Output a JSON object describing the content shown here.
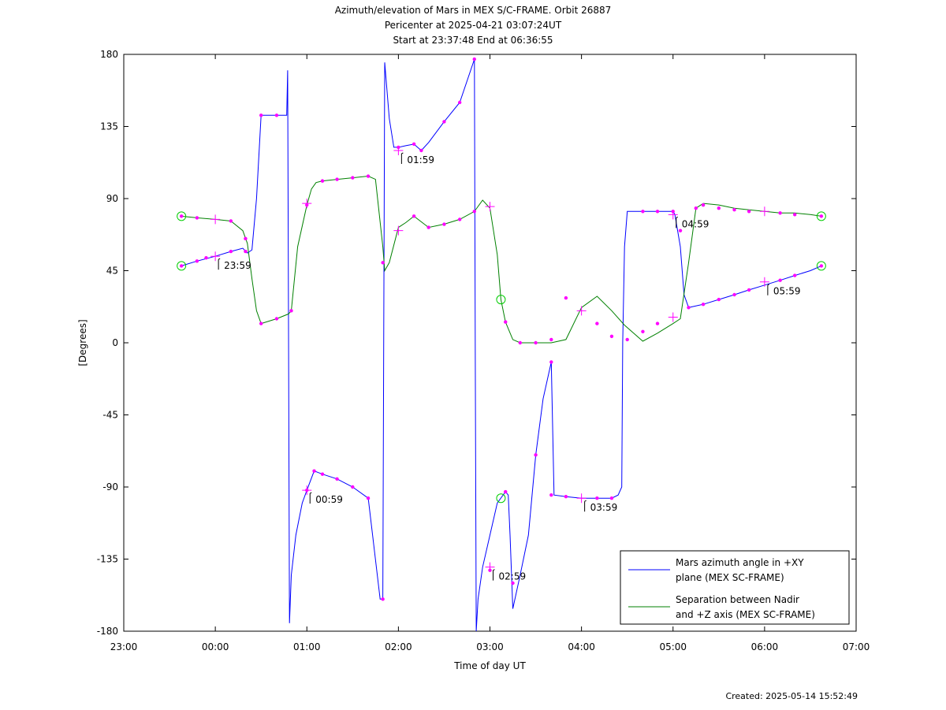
{
  "chart_data": {
    "type": "line",
    "title": [
      "Azimuth/elevation of Mars in MEX S/C-FRAME.  Orbit 26887",
      "Pericenter at 2025-04-21 03:07:24UT",
      "Start at 23:37:48 End at 06:36:55"
    ],
    "xlabel": "Time of day UT",
    "ylabel": "[Degrees]",
    "xlim_hours": [
      23,
      31
    ],
    "ylim": [
      -180,
      180
    ],
    "xticks": [
      {
        "v": 23,
        "label": "23:00"
      },
      {
        "v": 24,
        "label": "00:00"
      },
      {
        "v": 25,
        "label": "01:00"
      },
      {
        "v": 26,
        "label": "02:00"
      },
      {
        "v": 27,
        "label": "03:00"
      },
      {
        "v": 28,
        "label": "04:00"
      },
      {
        "v": 29,
        "label": "05:00"
      },
      {
        "v": 30,
        "label": "06:00"
      },
      {
        "v": 31,
        "label": "07:00"
      }
    ],
    "yticks": [
      -180,
      -135,
      -90,
      -45,
      0,
      45,
      90,
      135,
      180
    ],
    "grid": false,
    "legend_position": "bottom-right",
    "colors": {
      "azimuth": "#0000ff",
      "separation": "#008000",
      "marker": "#ff00ff",
      "endpoint": "#00cc00"
    },
    "series": [
      {
        "name": "Mars azimuth angle in +XY plane (MEX SC-FRAME)",
        "legend_lines": [
          "Mars azimuth angle in +XY",
          "plane (MEX SC-FRAME)"
        ],
        "color": "#0000ff",
        "x": [
          23.63,
          23.8,
          24.0,
          24.17,
          24.3,
          24.35,
          24.4,
          24.45,
          24.5,
          24.78,
          24.79,
          24.8,
          24.81,
          24.83,
          24.88,
          24.95,
          25.0,
          25.08,
          25.17,
          25.33,
          25.5,
          25.67,
          25.8,
          25.83,
          25.84,
          25.85,
          25.9,
          25.95,
          26.0,
          26.08,
          26.17,
          26.25,
          26.33,
          26.5,
          26.67,
          26.83,
          26.84,
          26.85,
          26.87,
          26.92,
          27.0,
          27.08,
          27.17,
          27.2,
          27.22,
          27.25,
          27.33,
          27.42,
          27.5,
          27.58,
          27.67,
          27.7,
          27.83,
          28.0,
          28.17,
          28.33,
          28.4,
          28.44,
          28.45,
          28.47,
          28.5,
          28.67,
          28.83,
          29.0,
          29.02,
          29.08,
          29.12,
          29.17,
          29.33,
          29.5,
          29.67,
          29.83,
          30.0,
          30.17,
          30.33,
          30.5,
          30.62
        ],
        "y": [
          48,
          51,
          54,
          57,
          59,
          56,
          58,
          90,
          142,
          142,
          170,
          8,
          -175,
          -145,
          -120,
          -100,
          -92,
          -80,
          -82,
          -85,
          -90,
          -97,
          -160,
          -160,
          10,
          175,
          140,
          122,
          122,
          123,
          124,
          120,
          125,
          138,
          150,
          177,
          -10,
          -180,
          -160,
          -140,
          -120,
          -100,
          -93,
          -95,
          -120,
          -166,
          -145,
          -120,
          -70,
          -35,
          -12,
          -95,
          -96,
          -97,
          -97,
          -97,
          -95,
          -90,
          0,
          60,
          82,
          82,
          82,
          82,
          80,
          60,
          30,
          22,
          24,
          27,
          30,
          33,
          36,
          39,
          42,
          45,
          48
        ]
      },
      {
        "name": "Separation between Nadir and +Z axis (MEX SC-FRAME)",
        "legend_lines": [
          "Separation between Nadir",
          "and +Z axis (MEX SC-FRAME)"
        ],
        "color": "#008000",
        "x": [
          23.63,
          23.8,
          24.0,
          24.17,
          24.3,
          24.35,
          24.4,
          24.45,
          24.5,
          24.67,
          24.8,
          24.83,
          24.9,
          25.0,
          25.05,
          25.1,
          25.17,
          25.33,
          25.5,
          25.67,
          25.75,
          25.83,
          25.85,
          25.9,
          26.0,
          26.08,
          26.17,
          26.33,
          26.5,
          26.67,
          26.83,
          26.92,
          27.0,
          27.08,
          27.12,
          27.17,
          27.25,
          27.33,
          27.5,
          27.67,
          27.83,
          28.0,
          28.17,
          28.33,
          28.47,
          28.67,
          28.83,
          29.0,
          29.08,
          29.17,
          29.25,
          29.33,
          29.5,
          29.67,
          29.83,
          30.0,
          30.17,
          30.33,
          30.5,
          30.62
        ],
        "y": [
          79,
          78,
          77,
          76,
          70,
          62,
          40,
          20,
          12,
          15,
          18,
          20,
          60,
          86,
          96,
          100,
          101,
          102,
          103,
          104,
          102,
          60,
          45,
          50,
          72,
          75,
          79,
          72,
          74,
          77,
          82,
          89,
          84,
          55,
          27,
          13,
          2,
          0,
          0,
          0,
          2,
          22,
          29,
          20,
          11,
          1,
          6,
          12,
          15,
          50,
          84,
          87,
          86,
          84,
          83,
          82,
          81,
          81,
          80,
          79
        ]
      }
    ],
    "magenta_markers": {
      "azimuth": [
        [
          23.63,
          48
        ],
        [
          23.8,
          51
        ],
        [
          23.9,
          53
        ],
        [
          24.17,
          57
        ],
        [
          24.33,
          57
        ],
        [
          24.5,
          142
        ],
        [
          24.67,
          142
        ],
        [
          25.0,
          -92
        ],
        [
          25.08,
          -80
        ],
        [
          25.17,
          -82
        ],
        [
          25.33,
          -85
        ],
        [
          25.5,
          -90
        ],
        [
          25.67,
          -97
        ],
        [
          25.83,
          -160
        ],
        [
          26.0,
          122
        ],
        [
          26.17,
          124
        ],
        [
          26.25,
          120
        ],
        [
          26.5,
          138
        ],
        [
          26.67,
          150
        ],
        [
          26.83,
          177
        ],
        [
          27.0,
          -142
        ],
        [
          27.17,
          -93
        ],
        [
          27.25,
          -150
        ],
        [
          27.5,
          -70
        ],
        [
          27.67,
          -12
        ],
        [
          27.67,
          -95
        ],
        [
          27.83,
          -96
        ],
        [
          28.17,
          -97
        ],
        [
          28.33,
          -97
        ],
        [
          28.67,
          82
        ],
        [
          28.83,
          82
        ],
        [
          29.0,
          82
        ],
        [
          29.17,
          22
        ],
        [
          29.33,
          24
        ],
        [
          29.5,
          27
        ],
        [
          29.67,
          30
        ],
        [
          29.83,
          33
        ],
        [
          30.17,
          39
        ],
        [
          30.33,
          42
        ],
        [
          30.62,
          48
        ]
      ],
      "separation": [
        [
          23.63,
          79
        ],
        [
          23.8,
          78
        ],
        [
          24.17,
          76
        ],
        [
          24.33,
          65
        ],
        [
          24.5,
          12
        ],
        [
          24.67,
          15
        ],
        [
          24.83,
          20
        ],
        [
          25.0,
          86
        ],
        [
          25.17,
          101
        ],
        [
          25.33,
          102
        ],
        [
          25.5,
          103
        ],
        [
          25.67,
          104
        ],
        [
          25.83,
          50
        ],
        [
          26.17,
          79
        ],
        [
          26.33,
          72
        ],
        [
          26.5,
          74
        ],
        [
          26.67,
          77
        ],
        [
          26.83,
          82
        ],
        [
          27.17,
          13
        ],
        [
          27.33,
          0
        ],
        [
          27.5,
          0
        ],
        [
          27.67,
          2
        ],
        [
          27.83,
          28
        ],
        [
          28.17,
          12
        ],
        [
          28.33,
          4
        ],
        [
          28.5,
          2
        ],
        [
          28.67,
          7
        ],
        [
          28.83,
          12
        ],
        [
          29.08,
          70
        ],
        [
          29.25,
          84
        ],
        [
          29.33,
          86
        ],
        [
          29.5,
          84
        ],
        [
          29.67,
          83
        ],
        [
          29.83,
          82
        ],
        [
          30.17,
          81
        ],
        [
          30.33,
          80
        ],
        [
          30.62,
          79
        ]
      ]
    },
    "plus_markers": [
      [
        24.0,
        54
      ],
      [
        24.0,
        77
      ],
      [
        25.0,
        -92
      ],
      [
        25.0,
        87
      ],
      [
        26.0,
        120
      ],
      [
        26.0,
        70
      ],
      [
        27.0,
        -140
      ],
      [
        27.0,
        85
      ],
      [
        28.0,
        -97
      ],
      [
        28.0,
        20
      ],
      [
        29.0,
        16
      ],
      [
        29.0,
        80
      ],
      [
        30.0,
        38
      ],
      [
        30.0,
        82
      ]
    ],
    "circle_markers": [
      [
        23.63,
        48
      ],
      [
        23.63,
        79
      ],
      [
        27.12,
        27
      ],
      [
        27.12,
        -97
      ],
      [
        30.62,
        48
      ],
      [
        30.62,
        79
      ]
    ],
    "annotations": [
      {
        "x": 24.0,
        "y": 54,
        "text": "23:59"
      },
      {
        "x": 25.0,
        "y": -92,
        "text": "00:59"
      },
      {
        "x": 26.0,
        "y": 120,
        "text": "01:59"
      },
      {
        "x": 27.0,
        "y": -140,
        "text": "02:59"
      },
      {
        "x": 28.0,
        "y": -97,
        "text": "03:59"
      },
      {
        "x": 29.0,
        "y": 80,
        "text": "04:59"
      },
      {
        "x": 30.0,
        "y": 38,
        "text": "05:59"
      }
    ]
  },
  "footer": {
    "created": "Created: 2025-05-14 15:52:49"
  }
}
